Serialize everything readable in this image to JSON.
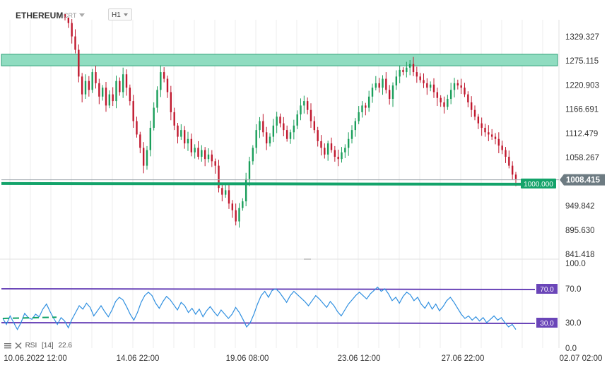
{
  "header": {
    "symbol": "ETHEREUM",
    "chart_type": "CRT",
    "timeframe": "H1"
  },
  "indicator": {
    "name": "RSI",
    "period": "[14]",
    "value": "22.6"
  },
  "colors": {
    "bull": "#1a9e5a",
    "bear": "#c0182e",
    "zone_fill": "#8fdcc0",
    "zone_border": "#2a9e74",
    "support_line": "#13a36a",
    "rsi_line": "#2f8fe0",
    "rsi_level": "#6a45b8",
    "price_tag": "#6d7b82"
  },
  "chart_data": [
    {
      "type": "candlestick",
      "title": "",
      "y_ticks": [
        "1329.327",
        "1275.115",
        "1220.903",
        "1166.691",
        "1112.479",
        "1058.267",
        "1008.415",
        "949.842",
        "895.630",
        "841.418"
      ],
      "ylim": [
        841.418,
        1329.327
      ],
      "x_ticks": [
        "10.06.2022 12:00",
        "14.06 22:00",
        "19.06 08:00",
        "23.06 12:00",
        "27.06 22:00",
        "02.07 02:00"
      ],
      "current_price": "1008.415",
      "resistance_zone": [
        1264,
        1290
      ],
      "support_level": "1000.000",
      "grid": true,
      "candle_closes": [
        1372,
        1360,
        1330,
        1300,
        1240,
        1200,
        1230,
        1210,
        1250,
        1225,
        1195,
        1215,
        1175,
        1200,
        1185,
        1230,
        1205,
        1245,
        1215,
        1185,
        1140,
        1110,
        1080,
        1040,
        1075,
        1125,
        1170,
        1210,
        1250,
        1235,
        1205,
        1160,
        1130,
        1105,
        1120,
        1090,
        1100,
        1070,
        1080,
        1060,
        1075,
        1055,
        1065,
        1050,
        1040,
        990,
        975,
        985,
        955,
        940,
        915,
        945,
        960,
        1010,
        1050,
        1080,
        1120,
        1140,
        1115,
        1090,
        1105,
        1130,
        1150,
        1135,
        1120,
        1100,
        1115,
        1130,
        1155,
        1175,
        1185,
        1165,
        1140,
        1120,
        1095,
        1080,
        1065,
        1090,
        1075,
        1060,
        1055,
        1070,
        1080,
        1100,
        1120,
        1140,
        1160,
        1175,
        1170,
        1195,
        1215,
        1225,
        1215,
        1235,
        1210,
        1190,
        1220,
        1240,
        1255,
        1250,
        1260,
        1268,
        1250,
        1240,
        1232,
        1225,
        1215,
        1222,
        1205,
        1192,
        1182,
        1172,
        1190,
        1210,
        1225,
        1220,
        1215,
        1200,
        1182,
        1165,
        1150,
        1135,
        1125,
        1115,
        1110,
        1105,
        1100,
        1085,
        1075,
        1060,
        1040,
        1020,
        1010
      ]
    },
    {
      "type": "line",
      "title": "",
      "ylim": [
        0,
        100
      ],
      "y_ticks": [
        "100.0",
        "70.0",
        "30.0",
        "0.0"
      ],
      "levels": [
        "70.0",
        "30.0"
      ],
      "series": [
        {
          "name": "",
          "values": [
            35,
            28,
            38,
            30,
            22,
            30,
            41,
            36,
            34,
            40,
            37,
            46,
            52,
            43,
            35,
            28,
            36,
            32,
            24,
            34,
            42,
            50,
            46,
            53,
            48,
            38,
            44,
            50,
            43,
            37,
            45,
            55,
            60,
            57,
            49,
            40,
            33,
            42,
            54,
            62,
            66,
            62,
            53,
            47,
            55,
            61,
            57,
            51,
            45,
            54,
            50,
            42,
            47,
            40,
            46,
            37,
            44,
            49,
            43,
            38,
            45,
            40,
            35,
            40,
            48,
            42,
            34,
            25,
            30,
            40,
            52,
            62,
            67,
            60,
            68,
            70,
            66,
            60,
            54,
            62,
            67,
            63,
            59,
            55,
            50,
            56,
            62,
            58,
            53,
            48,
            55,
            50,
            43,
            38,
            45,
            52,
            57,
            62,
            66,
            62,
            58,
            64,
            68,
            72,
            67,
            70,
            64,
            56,
            60,
            53,
            61,
            66,
            63,
            56,
            60,
            52,
            47,
            54,
            46,
            52,
            44,
            49,
            56,
            60,
            54,
            47,
            40,
            35,
            38,
            33,
            37,
            32,
            36,
            30,
            34,
            38,
            33,
            36,
            30,
            25,
            28,
            22
          ]
        }
      ]
    }
  ]
}
